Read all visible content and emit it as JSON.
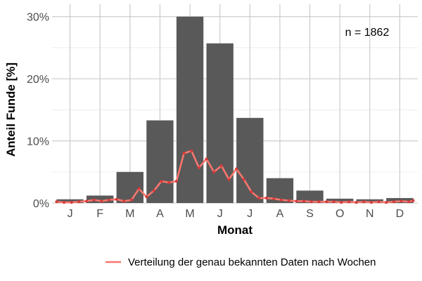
{
  "chart_data": {
    "type": "bar",
    "categories": [
      "J",
      "F",
      "M",
      "A",
      "M",
      "J",
      "J",
      "A",
      "S",
      "O",
      "N",
      "D"
    ],
    "values": [
      0.6,
      1.2,
      5.0,
      13.3,
      30.0,
      25.7,
      13.7,
      4.0,
      2.0,
      0.7,
      0.6,
      0.8
    ],
    "xlabel": "Monat",
    "ylabel": "Anteil Funde [%]",
    "ylim": [
      0,
      32
    ],
    "yticks": [
      0,
      10,
      20,
      30
    ],
    "ytick_labels": [
      "0%",
      "10%",
      "20%",
      "30%"
    ],
    "annotation": "n = 1862",
    "bar_color": "#595959",
    "grid": true,
    "legend_position": "bottom",
    "series": [
      {
        "name": "Verteilung der genau bekannten Daten nach Wochen",
        "color": "#f8766d",
        "x": [
          0.55,
          0.8,
          1.05,
          1.3,
          1.55,
          1.8,
          2.05,
          2.3,
          2.55,
          2.8,
          3.05,
          3.3,
          3.55,
          3.8,
          4.05,
          4.3,
          4.55,
          4.8,
          5.05,
          5.3,
          5.55,
          5.8,
          6.05,
          6.3,
          6.55,
          6.8,
          7.05,
          7.3,
          7.55,
          7.8,
          8.05,
          8.3,
          8.55,
          8.8,
          9.05,
          9.3,
          9.55,
          9.8,
          10.05,
          10.3,
          10.55,
          10.8,
          11.05,
          11.3,
          11.55,
          11.8,
          12.05,
          12.3,
          12.45
        ],
        "values": [
          0.2,
          0.1,
          0.1,
          0.2,
          0.3,
          0.5,
          0.3,
          0.5,
          0.6,
          0.3,
          0.5,
          2.3,
          1.0,
          2.0,
          3.5,
          3.3,
          3.5,
          8.0,
          8.4,
          5.7,
          7.1,
          5.0,
          6.0,
          3.8,
          5.5,
          3.8,
          1.8,
          0.8,
          0.8,
          0.7,
          0.5,
          0.4,
          0.3,
          0.3,
          0.2,
          0.2,
          0.2,
          0.2,
          0.1,
          0.2,
          0.1,
          0.2,
          0.1,
          0.2,
          0.1,
          0.2,
          0.3,
          0.2,
          0.4
        ]
      }
    ]
  }
}
